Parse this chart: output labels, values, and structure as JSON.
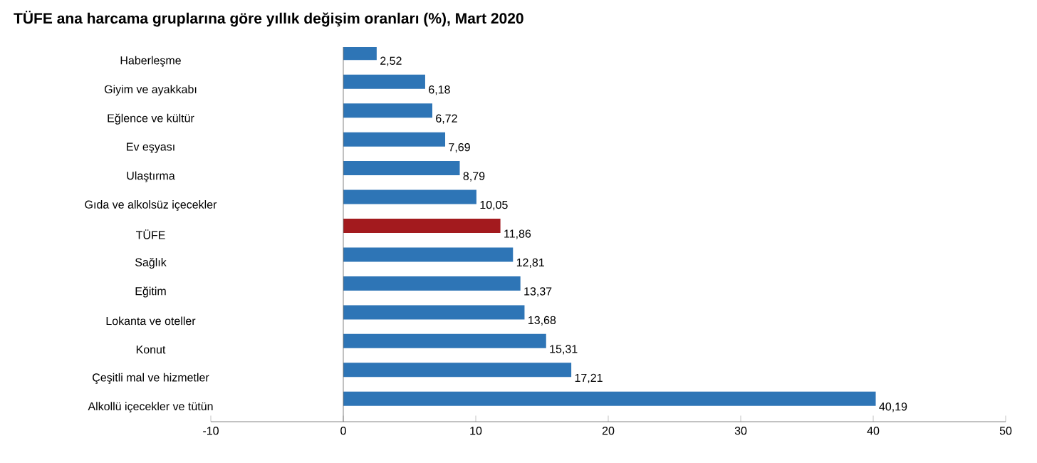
{
  "chart_data": {
    "type": "bar",
    "orientation": "horizontal",
    "title": "TÜFE ana harcama gruplarına göre yıllık değişim oranları (%), Mart 2020",
    "categories": [
      "Haberleşme",
      "Giyim ve ayakkabı",
      "Eğlence ve kültür",
      "Ev eşyası",
      "Ulaştırma",
      "Gıda ve alkolsüz içecekler",
      "TÜFE",
      "Sağlık",
      "Eğitim",
      "Lokanta ve oteller",
      "Konut",
      "Çeşitli mal ve hizmetler",
      "Alkollü içecekler ve tütün"
    ],
    "values": [
      2.52,
      6.18,
      6.72,
      7.69,
      8.79,
      10.05,
      11.86,
      12.81,
      13.37,
      13.68,
      15.31,
      17.21,
      40.19
    ],
    "value_labels": [
      "2,52",
      "6,18",
      "6,72",
      "7,69",
      "8,79",
      "10,05",
      "11,86",
      "12,81",
      "13,37",
      "13,68",
      "15,31",
      "17,21",
      "40,19"
    ],
    "colors": [
      "#2e75b6",
      "#2e75b6",
      "#2e75b6",
      "#2e75b6",
      "#2e75b6",
      "#2e75b6",
      "#a31a1e",
      "#2e75b6",
      "#2e75b6",
      "#2e75b6",
      "#2e75b6",
      "#2e75b6",
      "#2e75b6"
    ],
    "xlim": [
      -10,
      50
    ],
    "xticks": [
      -10,
      0,
      10,
      20,
      30,
      40,
      50
    ]
  }
}
